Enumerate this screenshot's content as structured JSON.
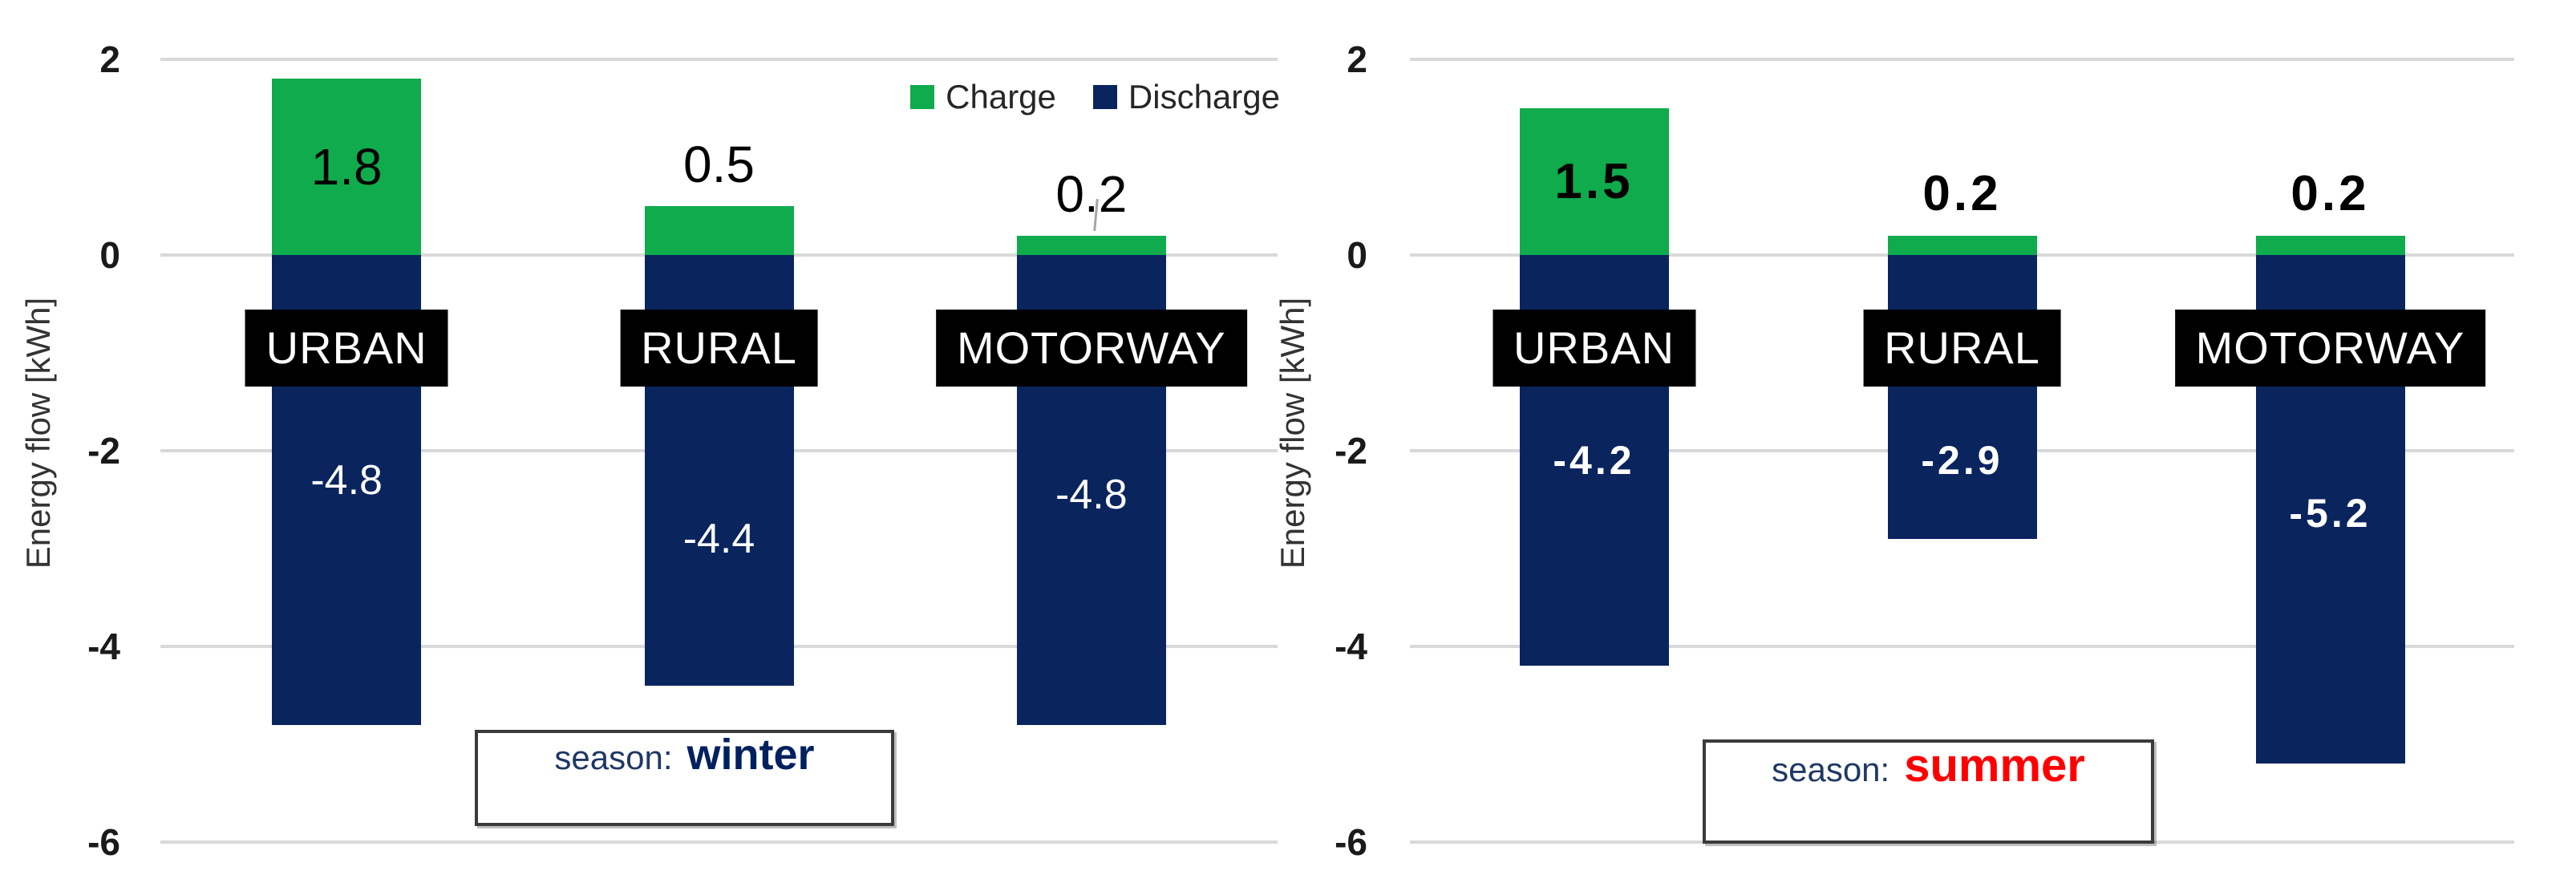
{
  "legend": {
    "items": [
      {
        "label": "Charge",
        "color": "#0FAB4D"
      },
      {
        "label": "Discharge",
        "color": "#0A245E"
      }
    ]
  },
  "colors": {
    "charge_green": "#0FAB4D",
    "discharge_navy": "#0A245E",
    "gridline_gray": "#D9D9D9",
    "category_box_black": "#000000",
    "category_text_white": "#FFFFFF",
    "season_prefix_navy": "#1F3864",
    "winter_navy": "#002060",
    "summer_red": "#FF0000",
    "leader_line_gray": "#A6A6A6"
  },
  "chart_data": [
    {
      "type": "bar",
      "panel": "left",
      "ylabel": "Energy flow [kWh]",
      "ylim": [
        -6,
        2
      ],
      "yticks": [
        2,
        0,
        -2,
        -4,
        -6
      ],
      "ytick_labels": [
        "2",
        "0",
        "-2",
        "-4",
        "-6"
      ],
      "grid": true,
      "legend_position": "top-right",
      "categories": [
        "URBAN",
        "RURAL",
        "MOTORWAY"
      ],
      "series": [
        {
          "name": "Charge",
          "values": [
            1.8,
            0.5,
            0.2
          ]
        },
        {
          "name": "Discharge",
          "values": [
            -4.8,
            -4.4,
            -4.8
          ]
        }
      ],
      "season": {
        "prefix": "season:",
        "value": "winter"
      }
    },
    {
      "type": "bar",
      "panel": "right",
      "ylabel": "Energy flow [kWh]",
      "ylim": [
        -6,
        2
      ],
      "yticks": [
        2,
        0,
        -2,
        -4,
        -6
      ],
      "ytick_labels": [
        "2",
        "0",
        "-2",
        "-4",
        "-6"
      ],
      "grid": true,
      "categories": [
        "URBAN",
        "RURAL",
        "MOTORWAY"
      ],
      "series": [
        {
          "name": "Charge",
          "values": [
            1.5,
            0.2,
            0.2
          ]
        },
        {
          "name": "Discharge",
          "values": [
            -4.2,
            -2.9,
            -5.2
          ]
        }
      ],
      "season": {
        "prefix": "season:",
        "value": "summer"
      }
    }
  ]
}
